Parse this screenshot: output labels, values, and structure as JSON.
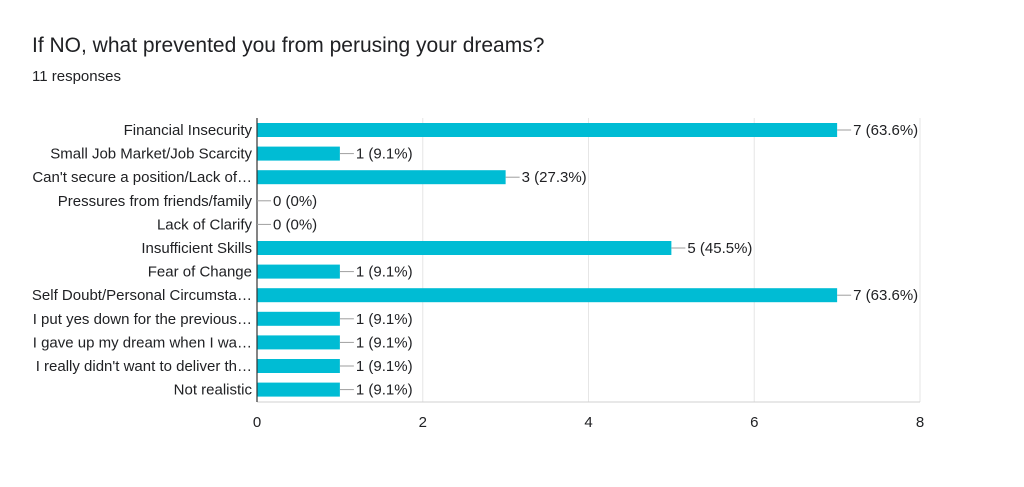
{
  "header": {
    "title": "If NO, what prevented you from perusing your dreams?",
    "responses": "11 responses"
  },
  "chart_data": {
    "type": "bar",
    "orientation": "horizontal",
    "title": "If NO, what prevented you from perusing your dreams?",
    "subtitle": "11 responses",
    "categories": [
      "Financial Insecurity",
      "Small Job Market/Job Scarcity",
      "Can't secure a position/Lack of…",
      "Pressures from friends/family",
      "Lack of Clarify",
      "Insufficient Skills",
      "Fear of Change",
      "Self Doubt/Personal Circumsta…",
      "I put yes down for the previous…",
      "I gave up my dream when I wa…",
      "I really didn't want to deliver th…",
      "Not realistic"
    ],
    "values": [
      7,
      1,
      3,
      0,
      0,
      5,
      1,
      7,
      1,
      1,
      1,
      1
    ],
    "data_labels": [
      "7 (63.6%)",
      "1 (9.1%)",
      "3 (27.3%)",
      "0 (0%)",
      "0 (0%)",
      "5 (45.5%)",
      "1 (9.1%)",
      "7 (63.6%)",
      "1 (9.1%)",
      "1 (9.1%)",
      "1 (9.1%)",
      "1 (9.1%)"
    ],
    "xticks": [
      "0",
      "2",
      "4",
      "6",
      "8"
    ],
    "xlim": [
      0,
      8
    ],
    "grid": true,
    "bar_color": "#00bcd4"
  }
}
